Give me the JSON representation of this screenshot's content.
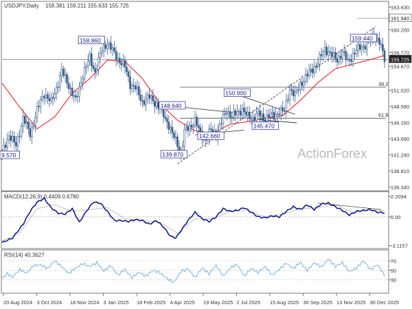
{
  "header": {
    "symbol": "USDJPY,Daily",
    "ohlc": "158.381 159.211 155.633 155.725"
  },
  "watermark": "ActionForex",
  "colors": {
    "candles": "#3b5e8a",
    "ma": "#e8262a",
    "macd": "#0f1a8c",
    "signal": "#bfbfbf",
    "rsi": "#6aa8e0",
    "level_line": "#444444",
    "last_price_bg": "#222222"
  },
  "chart_data": [
    {
      "type": "candlestick",
      "panel": "price",
      "title": "USDJPY,Daily",
      "x_tick_labels": [
        "20 Aug 2024",
        "3 Oct 2024",
        "18 Nov 2024",
        "3 Jan 2025",
        "18 Feb 2025",
        "4 Apr 2025",
        "19 May 2025",
        "2 Jul 2025",
        "15 Aug 2025",
        "30 Sep 2025",
        "13 Nov 2025",
        "30 Dec 2025"
      ],
      "y_ticks": [
        163.63,
        160.2,
        156.77,
        154.67,
        151.02,
        148.59,
        146.16,
        143.69,
        141.24,
        138.81,
        136.34
      ],
      "ylim": [
        136.0,
        164.3
      ],
      "overlay": "moving average",
      "price_path": [
        [
          0,
          141.5
        ],
        [
          4,
          144.3
        ],
        [
          8,
          142.6
        ],
        [
          12,
          146.9
        ],
        [
          16,
          144.4
        ],
        [
          20,
          148.0
        ],
        [
          24,
          150.6
        ],
        [
          28,
          149.2
        ],
        [
          31,
          151.4
        ],
        [
          34,
          153.9
        ],
        [
          38,
          151.8
        ],
        [
          42,
          149.4
        ],
        [
          46,
          153.4
        ],
        [
          50,
          156.0
        ],
        [
          53,
          153.8
        ],
        [
          57,
          157.2
        ],
        [
          60,
          158.3
        ],
        [
          63,
          157.0
        ],
        [
          66,
          155.8
        ],
        [
          70,
          154.6
        ],
        [
          73,
          152.0
        ],
        [
          76,
          151.4
        ],
        [
          80,
          149.3
        ],
        [
          84,
          150.0
        ],
        [
          88,
          149.0
        ],
        [
          92,
          147.3
        ],
        [
          95,
          145.8
        ],
        [
          97,
          144.4
        ],
        [
          100,
          142.9
        ],
        [
          102,
          141.3
        ],
        [
          104,
          144.7
        ],
        [
          107,
          145.5
        ],
        [
          110,
          146.5
        ],
        [
          113,
          144.4
        ],
        [
          116,
          143.6
        ],
        [
          119,
          145.0
        ],
        [
          122,
          144.4
        ],
        [
          125,
          146.2
        ],
        [
          128,
          148.0
        ],
        [
          131,
          147.1
        ],
        [
          134,
          147.6
        ],
        [
          137,
          148.2
        ],
        [
          140,
          147.0
        ],
        [
          143,
          146.9
        ],
        [
          146,
          147.5
        ],
        [
          149,
          146.7
        ],
        [
          152,
          147.3
        ],
        [
          155,
          147.0
        ],
        [
          158,
          148.0
        ],
        [
          161,
          147.8
        ],
        [
          164,
          151.4
        ],
        [
          167,
          150.2
        ],
        [
          170,
          152.0
        ],
        [
          173,
          153.0
        ],
        [
          176,
          154.0
        ],
        [
          180,
          155.2
        ],
        [
          184,
          157.4
        ],
        [
          188,
          156.3
        ],
        [
          191,
          155.7
        ],
        [
          194,
          156.8
        ],
        [
          197,
          155.4
        ],
        [
          200,
          156.4
        ],
        [
          204,
          157.6
        ],
        [
          208,
          158.0
        ],
        [
          212,
          159.4
        ],
        [
          215,
          158.4
        ],
        [
          218,
          155.7
        ]
      ],
      "ma_path": [
        [
          0,
          152.1
        ],
        [
          10,
          148.5
        ],
        [
          20,
          145.2
        ],
        [
          30,
          147.0
        ],
        [
          40,
          150.6
        ],
        [
          50,
          152.8
        ],
        [
          60,
          155.6
        ],
        [
          70,
          155.4
        ],
        [
          80,
          152.8
        ],
        [
          90,
          149.0
        ],
        [
          100,
          146.5
        ],
        [
          110,
          144.9
        ],
        [
          120,
          144.5
        ],
        [
          130,
          145.9
        ],
        [
          140,
          146.3
        ],
        [
          150,
          146.8
        ],
        [
          160,
          147.2
        ],
        [
          170,
          149.5
        ],
        [
          180,
          152.2
        ],
        [
          190,
          154.3
        ],
        [
          200,
          155.0
        ],
        [
          210,
          155.7
        ],
        [
          218,
          156.3
        ]
      ],
      "horizontal_levels": [
        {
          "value": 161.94,
          "label": "161.940"
        },
        {
          "value": 155.725,
          "label": "155.725"
        },
        {
          "value": 151.5,
          "label": "38.2"
        },
        {
          "value": 146.8,
          "label": "61.8"
        }
      ],
      "price_labels": [
        {
          "x": 1,
          "price": 141.2,
          "text": "9.570"
        },
        {
          "x": 51,
          "price": 158.6,
          "text": "158.860"
        },
        {
          "x": 97,
          "price": 148.7,
          "text": "148.640"
        },
        {
          "x": 98,
          "price": 141.3,
          "text": "139.870"
        },
        {
          "x": 134,
          "price": 150.6,
          "text": "150.900"
        },
        {
          "x": 119,
          "price": 144.1,
          "text": "142.660"
        },
        {
          "x": 150,
          "price": 145.6,
          "text": "145.470"
        },
        {
          "x": 206,
          "price": 158.9,
          "text": "159.440"
        }
      ],
      "trendlines": [
        {
          "from": [
            97,
            148.64
          ],
          "to": [
            134,
            147.6
          ]
        },
        {
          "from": [
            110,
            144.3
          ],
          "to": [
            138,
            145.0
          ]
        },
        {
          "from": [
            128,
            150.9
          ],
          "to": [
            167,
            147.4
          ]
        },
        {
          "from": [
            146,
            146.6
          ],
          "to": [
            168,
            146.1
          ]
        },
        {
          "from": [
            100,
            139.9
          ],
          "to": [
            213,
            160.7
          ]
        }
      ]
    },
    {
      "type": "line",
      "panel": "macd",
      "title": "MACD(12,26,9) 0.4409 0.6780",
      "y_ticks": [
        2.2094,
        0.0,
        -3.1157
      ],
      "ylim": [
        -3.3,
        2.6
      ],
      "series": [
        {
          "role": "macd",
          "values": [
            [
              0,
              -2.8
            ],
            [
              6,
              -2.3
            ],
            [
              12,
              -0.8
            ],
            [
              16,
              0.6
            ],
            [
              20,
              1.6
            ],
            [
              24,
              2.0
            ],
            [
              28,
              1.0
            ],
            [
              32,
              0.4
            ],
            [
              36,
              0.3
            ],
            [
              40,
              0.9
            ],
            [
              44,
              -0.6
            ],
            [
              48,
              0.6
            ],
            [
              52,
              1.6
            ],
            [
              56,
              1.5
            ],
            [
              60,
              0.6
            ],
            [
              64,
              -0.4
            ],
            [
              68,
              -0.4
            ],
            [
              72,
              -0.5
            ],
            [
              76,
              -0.3
            ],
            [
              80,
              -0.4
            ],
            [
              84,
              -0.8
            ],
            [
              88,
              -0.4
            ],
            [
              92,
              -1.1
            ],
            [
              96,
              -2.1
            ],
            [
              99,
              -2.3
            ],
            [
              102,
              -1.5
            ],
            [
              106,
              -0.4
            ],
            [
              110,
              0.5
            ],
            [
              114,
              -0.2
            ],
            [
              118,
              -0.5
            ],
            [
              122,
              0.0
            ],
            [
              126,
              0.9
            ],
            [
              130,
              0.6
            ],
            [
              134,
              0.7
            ],
            [
              138,
              1.0
            ],
            [
              142,
              0.5
            ],
            [
              146,
              0.0
            ],
            [
              150,
              -0.1
            ],
            [
              154,
              0.1
            ],
            [
              158,
              0.0
            ],
            [
              162,
              0.6
            ],
            [
              166,
              1.1
            ],
            [
              170,
              0.8
            ],
            [
              174,
              1.3
            ],
            [
              178,
              0.8
            ],
            [
              182,
              1.4
            ],
            [
              186,
              1.5
            ],
            [
              190,
              1.1
            ],
            [
              194,
              0.7
            ],
            [
              198,
              0.2
            ],
            [
              202,
              0.6
            ],
            [
              206,
              0.7
            ],
            [
              210,
              0.8
            ],
            [
              214,
              0.5
            ],
            [
              218,
              0.44
            ]
          ]
        },
        {
          "role": "signal",
          "values": [
            [
              0,
              -2.6
            ],
            [
              10,
              -1.8
            ],
            [
              20,
              0.9
            ],
            [
              30,
              1.3
            ],
            [
              40,
              0.6
            ],
            [
              50,
              0.8
            ],
            [
              60,
              1.0
            ],
            [
              70,
              -0.2
            ],
            [
              80,
              -0.4
            ],
            [
              90,
              -0.6
            ],
            [
              100,
              -1.8
            ],
            [
              110,
              -0.2
            ],
            [
              120,
              -0.2
            ],
            [
              130,
              0.6
            ],
            [
              140,
              0.7
            ],
            [
              150,
              0.0
            ],
            [
              160,
              0.3
            ],
            [
              170,
              0.9
            ],
            [
              180,
              1.0
            ],
            [
              190,
              1.3
            ],
            [
              200,
              0.5
            ],
            [
              210,
              0.7
            ],
            [
              218,
              0.68
            ]
          ]
        }
      ],
      "trendline": {
        "from": [
          180,
          1.5
        ],
        "to": [
          216,
          0.8
        ]
      }
    },
    {
      "type": "line",
      "panel": "rsi",
      "title": "RSI(14) 40.3627",
      "y_ticks": [
        70,
        50,
        30
      ],
      "ylim": [
        5,
        90
      ],
      "series": [
        {
          "role": "rsi",
          "values": [
            [
              0,
              33
            ],
            [
              3,
              43
            ],
            [
              6,
              36
            ],
            [
              10,
              52
            ],
            [
              14,
              44
            ],
            [
              18,
              60
            ],
            [
              22,
              62
            ],
            [
              26,
              54
            ],
            [
              30,
              70
            ],
            [
              34,
              58
            ],
            [
              38,
              44
            ],
            [
              42,
              55
            ],
            [
              46,
              64
            ],
            [
              50,
              58
            ],
            [
              54,
              66
            ],
            [
              58,
              49
            ],
            [
              62,
              60
            ],
            [
              66,
              40
            ],
            [
              70,
              52
            ],
            [
              74,
              35
            ],
            [
              78,
              46
            ],
            [
              82,
              38
            ],
            [
              86,
              50
            ],
            [
              90,
              45
            ],
            [
              94,
              33
            ],
            [
              98,
              25
            ],
            [
              102,
              48
            ],
            [
              106,
              53
            ],
            [
              110,
              35
            ],
            [
              114,
              55
            ],
            [
              118,
              43
            ],
            [
              122,
              61
            ],
            [
              126,
              38
            ],
            [
              130,
              55
            ],
            [
              134,
              63
            ],
            [
              138,
              38
            ],
            [
              142,
              54
            ],
            [
              146,
              46
            ],
            [
              150,
              58
            ],
            [
              154,
              40
            ],
            [
              158,
              52
            ],
            [
              162,
              65
            ],
            [
              166,
              54
            ],
            [
              170,
              67
            ],
            [
              174,
              50
            ],
            [
              178,
              66
            ],
            [
              182,
              57
            ],
            [
              186,
              74
            ],
            [
              190,
              58
            ],
            [
              194,
              66
            ],
            [
              198,
              47
            ],
            [
              202,
              55
            ],
            [
              206,
              70
            ],
            [
              210,
              52
            ],
            [
              214,
              62
            ],
            [
              218,
              40
            ]
          ]
        }
      ]
    }
  ]
}
